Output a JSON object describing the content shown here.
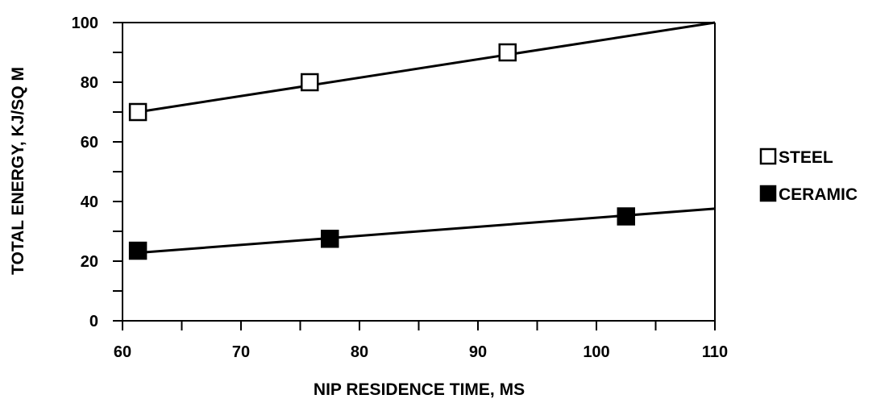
{
  "chart_data": {
    "type": "scatter",
    "title": "",
    "xlabel": "NIP RESIDENCE TIME,  MS",
    "ylabel": "TOTAL ENERGY,  KJ/SQ M",
    "xlim": [
      60,
      110
    ],
    "ylim": [
      0,
      100
    ],
    "x_ticks": [
      60,
      70,
      80,
      90,
      100,
      110
    ],
    "y_ticks": [
      0,
      20,
      40,
      60,
      80,
      100
    ],
    "grid": false,
    "legend_position": "right",
    "series": [
      {
        "name": "STEEL",
        "marker": "open-square",
        "color": "#000000",
        "x": [
          61.3,
          75.8,
          92.5
        ],
        "y": [
          70,
          80,
          90
        ],
        "fit_line": {
          "x": [
            61.3,
            110
          ],
          "y": [
            70,
            100
          ]
        }
      },
      {
        "name": "CERAMIC",
        "marker": "filled-square",
        "color": "#000000",
        "x": [
          61.3,
          77.5,
          102.5
        ],
        "y": [
          23.5,
          27.5,
          35
        ],
        "fit_line": {
          "x": [
            61.3,
            110
          ],
          "y": [
            22.8,
            37.6
          ]
        }
      }
    ]
  }
}
